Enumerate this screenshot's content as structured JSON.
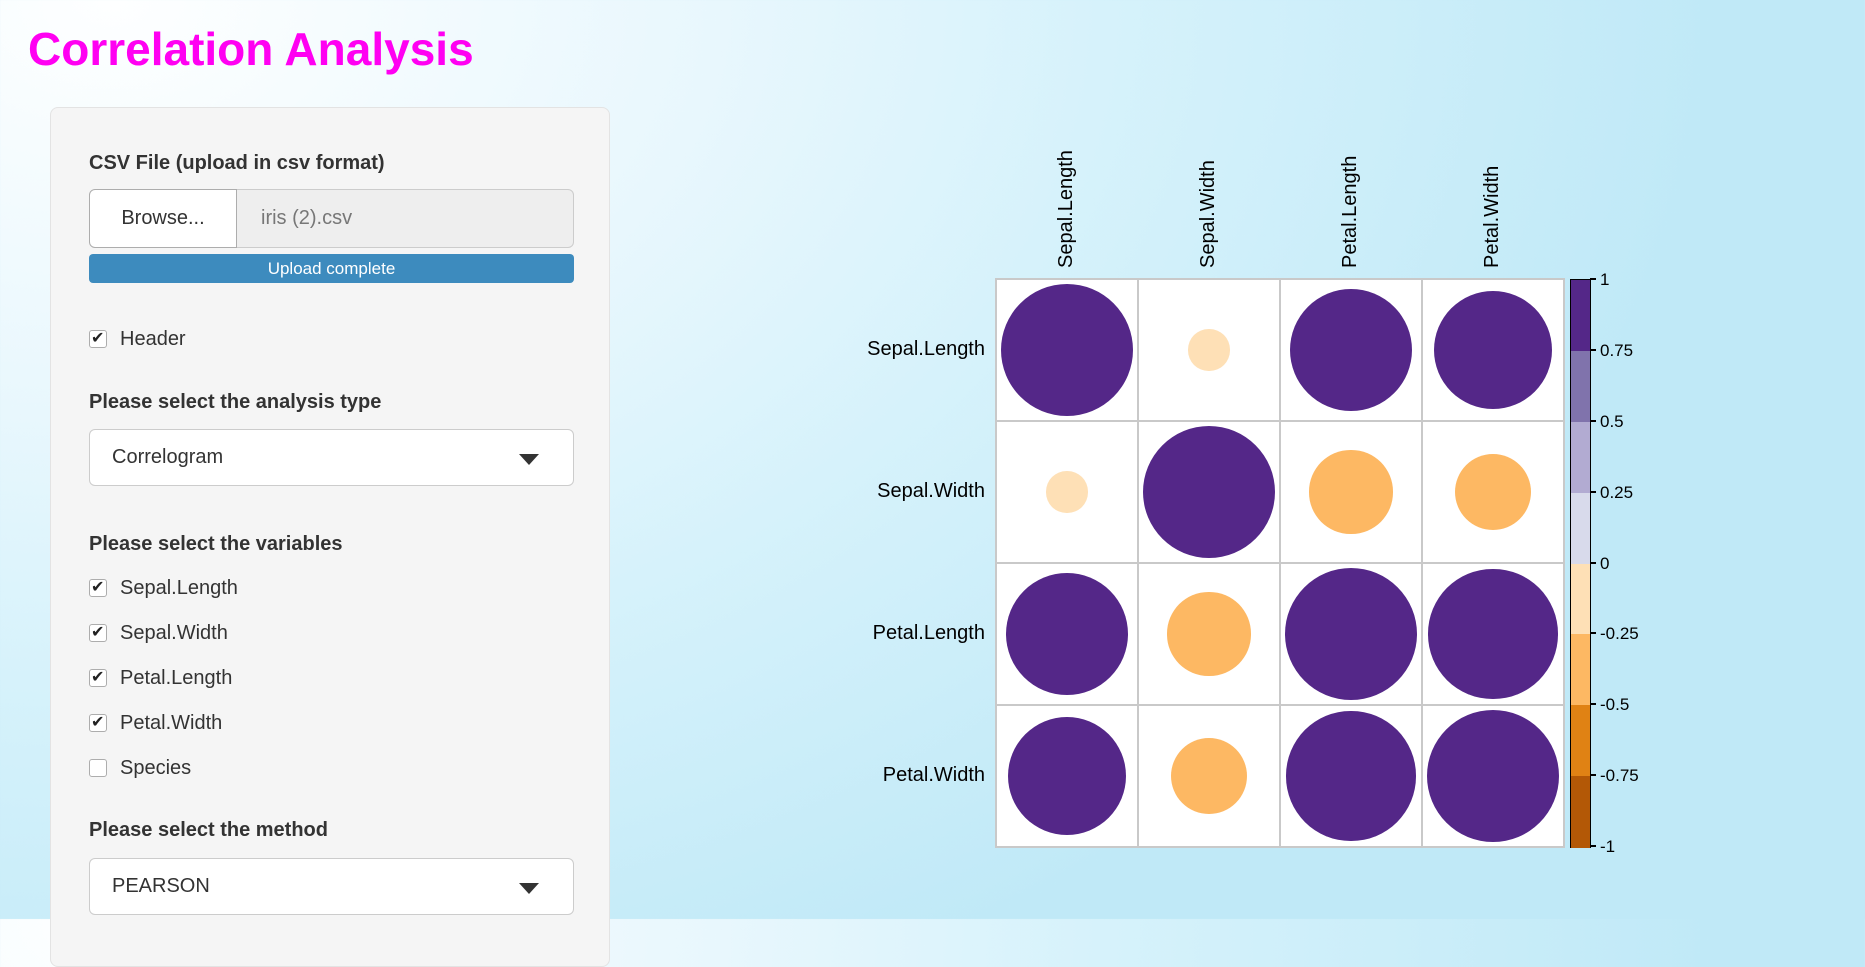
{
  "page": {
    "title": "Correlation Analysis",
    "title_color": "#FF00F2",
    "background_tint": "#C8EDF9"
  },
  "sidebar": {
    "file_label": "CSV File (upload in csv format)",
    "browse_label": "Browse...",
    "file_name": "iris (2).csv",
    "upload_status": "Upload complete",
    "upload_bar_color": "#3D8BBE",
    "header_checkbox": {
      "label": "Header",
      "checked": true
    },
    "analysis_label": "Please select the analysis type",
    "analysis_value": "Correlogram",
    "variables_label": "Please select the variables",
    "variables": [
      {
        "label": "Sepal.Length",
        "checked": true
      },
      {
        "label": "Sepal.Width",
        "checked": true
      },
      {
        "label": "Petal.Length",
        "checked": true
      },
      {
        "label": "Petal.Width",
        "checked": true
      },
      {
        "label": "Species",
        "checked": false
      }
    ],
    "method_label": "Please select the method",
    "method_value": "PEARSON"
  },
  "chart_data": {
    "type": "heatmap",
    "subtype": "correlogram-circles",
    "title": "",
    "variables": [
      "Sepal.Length",
      "Sepal.Width",
      "Petal.Length",
      "Petal.Width"
    ],
    "matrix": [
      [
        1.0,
        -0.12,
        0.87,
        0.82
      ],
      [
        -0.12,
        1.0,
        -0.43,
        -0.37
      ],
      [
        0.87,
        -0.43,
        1.0,
        0.96
      ],
      [
        0.82,
        -0.37,
        0.96,
        1.0
      ]
    ],
    "value_range": [
      -1,
      1
    ],
    "palette_low_to_high": [
      "#B35806",
      "#E08214",
      "#FDB863",
      "#FEE0B6",
      "#D8DAEB",
      "#B2ABD2",
      "#8073AC",
      "#542788"
    ],
    "colorbar_ticks": [
      "1",
      "0.75",
      "0.5",
      "0.25",
      "0",
      "-0.25",
      "-0.5",
      "-0.75",
      "-1"
    ],
    "legend_position": "right",
    "grid": true
  }
}
